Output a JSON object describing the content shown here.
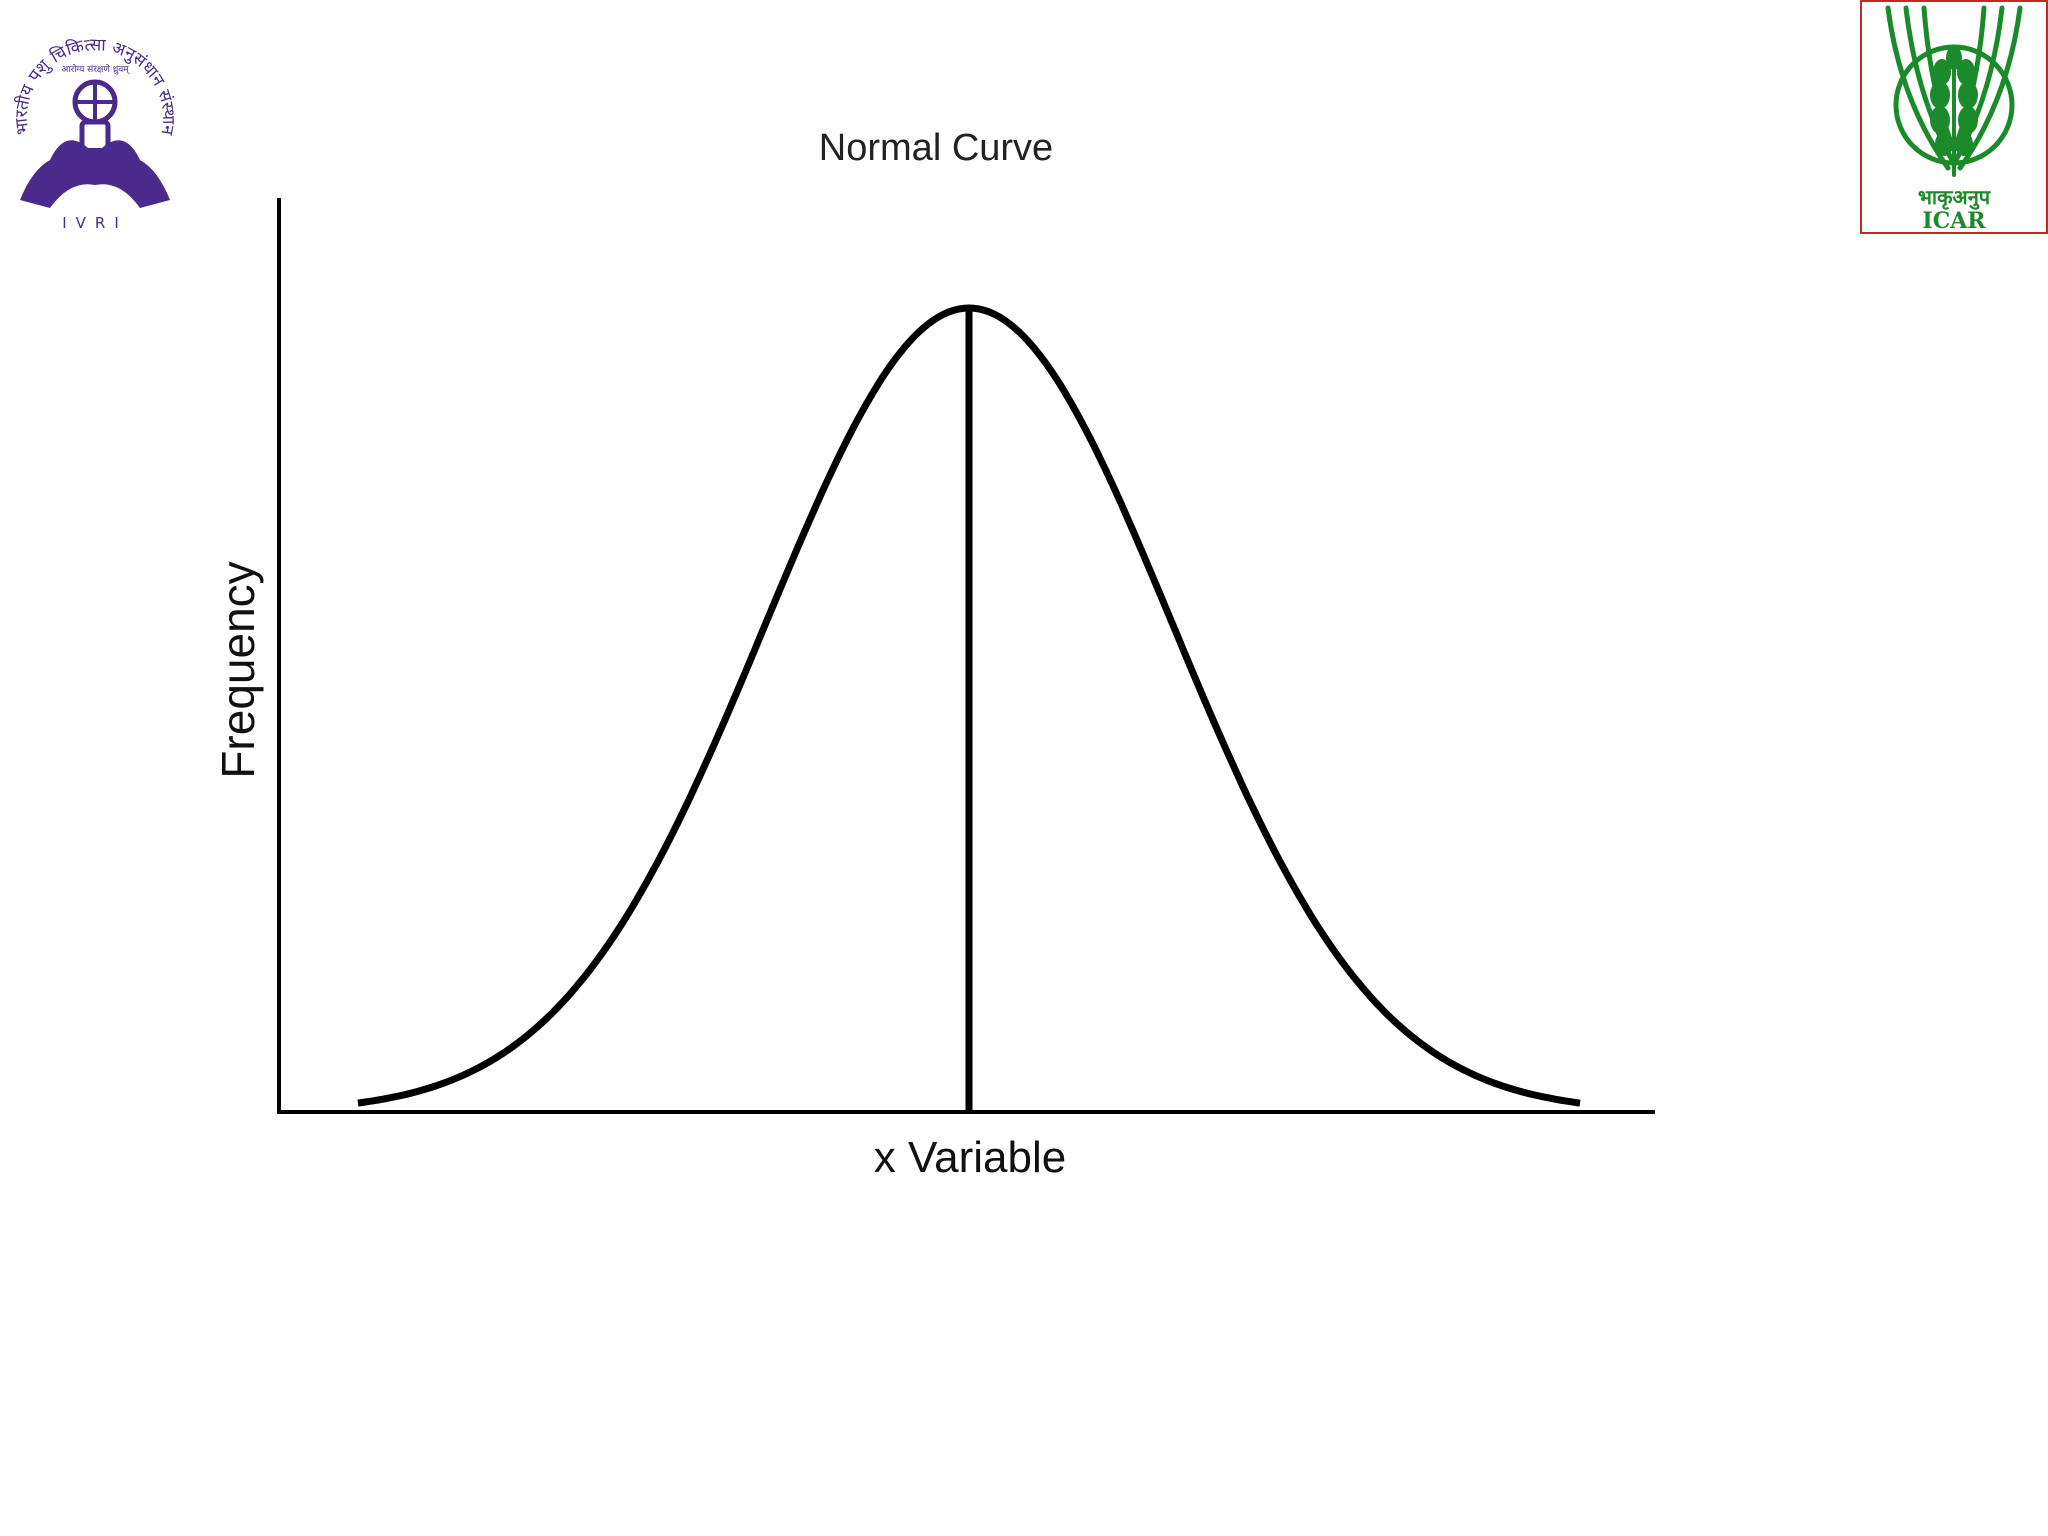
{
  "logos": {
    "ivri": {
      "name": "IVRI",
      "arc_text": "भारतीय पशु चिकित्सा अनुसंधान संस्थान",
      "inner_text": "आरोग्य संरक्षणे ध्रुवम्",
      "abbr": "IVRI",
      "color": "#4a2a8a"
    },
    "icar": {
      "name": "ICAR",
      "hindi": "भाकृअनुप",
      "abbr": "ICAR",
      "color": "#1a8a2a",
      "text_color": "#c0282a",
      "border_color": "#c0282a"
    }
  },
  "chart_data": {
    "type": "line",
    "title": "Normal Curve",
    "xlabel": "x Variable",
    "ylabel": "Frequency",
    "curve": "normal",
    "mean_line": true,
    "grid": false,
    "legend": "none",
    "series": [
      {
        "x": [
          -3.0,
          -2.5,
          -2.0,
          -1.5,
          -1.0,
          -0.5,
          0.0,
          0.5,
          1.0,
          1.5,
          2.0,
          2.5,
          3.0
        ],
        "y": [
          0.004,
          0.018,
          0.054,
          0.13,
          0.242,
          0.352,
          0.399,
          0.352,
          0.242,
          0.13,
          0.054,
          0.018,
          0.004
        ]
      }
    ],
    "colors": {
      "curve": "#000000",
      "axes": "#000000",
      "title": "#222222"
    }
  }
}
